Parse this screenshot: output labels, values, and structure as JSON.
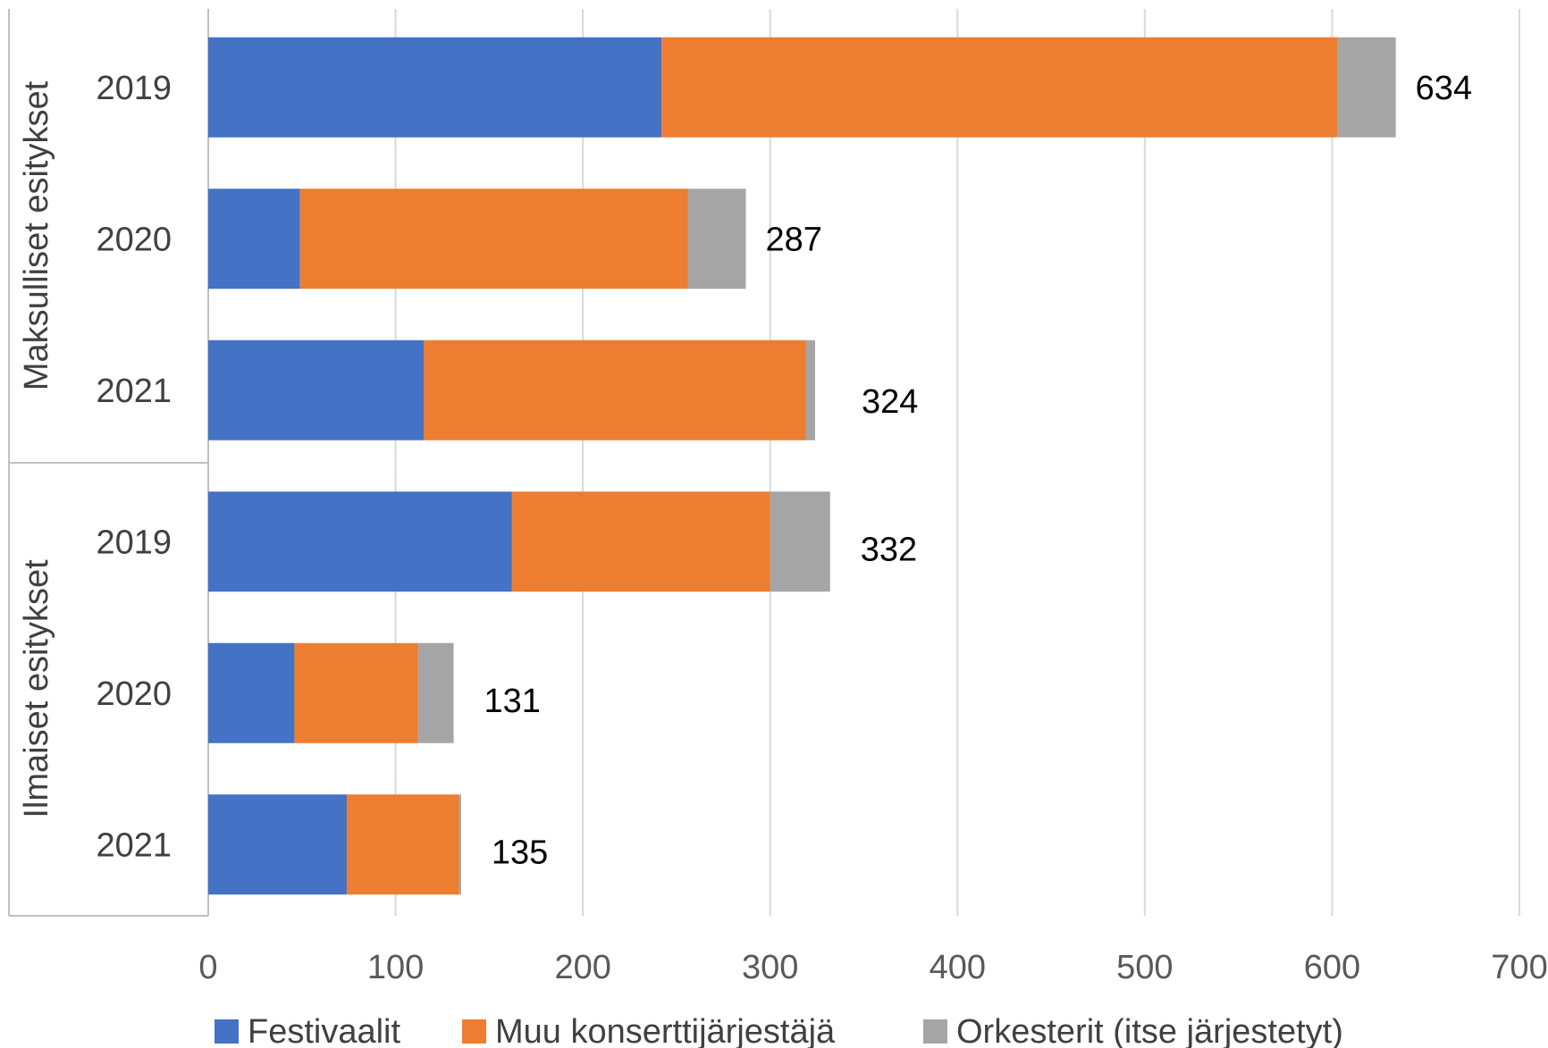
{
  "chart_data": {
    "type": "bar",
    "orientation": "horizontal",
    "stacked": true,
    "xlim": [
      0,
      700
    ],
    "xticks": [
      "0",
      "100",
      "200",
      "300",
      "400",
      "500",
      "600",
      "700"
    ],
    "grid": true,
    "legend_position": "bottom",
    "groups": [
      {
        "label": "Maksulliset esitykset",
        "categories": [
          "2019",
          "2020",
          "2021"
        ]
      },
      {
        "label": "Ilmaiset esitykset",
        "categories": [
          "2019",
          "2020",
          "2021"
        ]
      }
    ],
    "series": [
      {
        "name": "Festivaalit",
        "color": "#4472C4",
        "values": [
          242,
          49,
          115,
          162,
          46,
          74
        ]
      },
      {
        "name": "Muu konserttijärjestäjä",
        "color": "#ED7D31",
        "values": [
          361,
          207,
          204,
          138,
          66,
          60
        ]
      },
      {
        "name": "Orkesterit (itse järjestetyt)",
        "color": "#A5A5A5",
        "values": [
          31,
          31,
          5,
          32,
          19,
          1
        ]
      }
    ],
    "totals": [
      "634",
      "287",
      "324",
      "332",
      "131",
      "135"
    ]
  }
}
